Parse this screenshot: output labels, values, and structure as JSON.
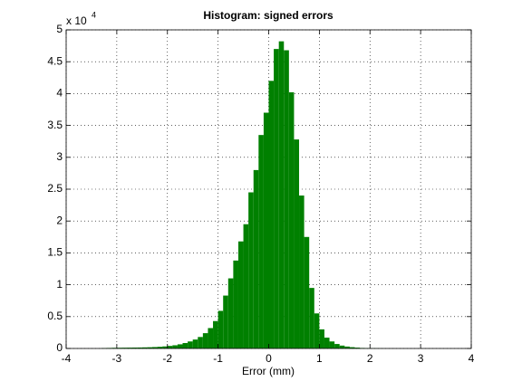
{
  "chart_data": {
    "type": "histogram",
    "title": "Histogram: signed errors",
    "x_label": "Error (mm)",
    "y_scale_label": {
      "base": "x 10",
      "exponent": "4"
    },
    "bins": [
      -3.3,
      -3.2,
      -3.1,
      -3.0,
      -2.9,
      -2.8,
      -2.7,
      -2.6,
      -2.5,
      -2.4,
      -2.3,
      -2.2,
      -2.1,
      -2.0,
      -1.9,
      -1.8,
      -1.7,
      -1.6,
      -1.5,
      -1.4,
      -1.3,
      -1.2,
      -1.1,
      -1.0,
      -0.9,
      -0.8,
      -0.7,
      -0.6,
      -0.5,
      -0.4,
      -0.3,
      -0.2,
      -0.1,
      0.0,
      0.1,
      0.2,
      0.3,
      0.4,
      0.5,
      0.6,
      0.7,
      0.8,
      0.9,
      1.0,
      1.1,
      1.2,
      1.3,
      1.4,
      1.5,
      1.6,
      1.7,
      1.8,
      1.9,
      2.0,
      2.1,
      2.2,
      2.3,
      2.4,
      2.5
    ],
    "values": [
      50,
      80,
      100,
      110,
      120,
      130,
      140,
      150,
      170,
      190,
      220,
      260,
      320,
      400,
      500,
      650,
      850,
      1100,
      1400,
      1800,
      2400,
      3200,
      4300,
      5900,
      8300,
      11000,
      13800,
      16800,
      19500,
      24500,
      28000,
      33500,
      37000,
      42000,
      47000,
      48200,
      46800,
      40200,
      32800,
      24000,
      17500,
      9500,
      5500,
      3000,
      1700,
      1100,
      700,
      450,
      300,
      200,
      130,
      80,
      50,
      30,
      20,
      10,
      5,
      3
    ],
    "color": "#008000",
    "xlim": [
      -4,
      4
    ],
    "xticks": [
      -4,
      -3,
      -2,
      -1,
      0,
      1,
      2,
      3,
      4
    ],
    "ylim": [
      0,
      50000
    ],
    "yticks": [
      {
        "value": 0,
        "label": "0"
      },
      {
        "value": 5000,
        "label": "0.5"
      },
      {
        "value": 10000,
        "label": "1"
      },
      {
        "value": 15000,
        "label": "1.5"
      },
      {
        "value": 20000,
        "label": "2"
      },
      {
        "value": 25000,
        "label": "2.5"
      },
      {
        "value": 30000,
        "label": "3"
      },
      {
        "value": 35000,
        "label": "3.5"
      },
      {
        "value": 40000,
        "label": "4"
      },
      {
        "value": 45000,
        "label": "4.5"
      },
      {
        "value": 50000,
        "label": "5"
      }
    ],
    "grid": true
  }
}
